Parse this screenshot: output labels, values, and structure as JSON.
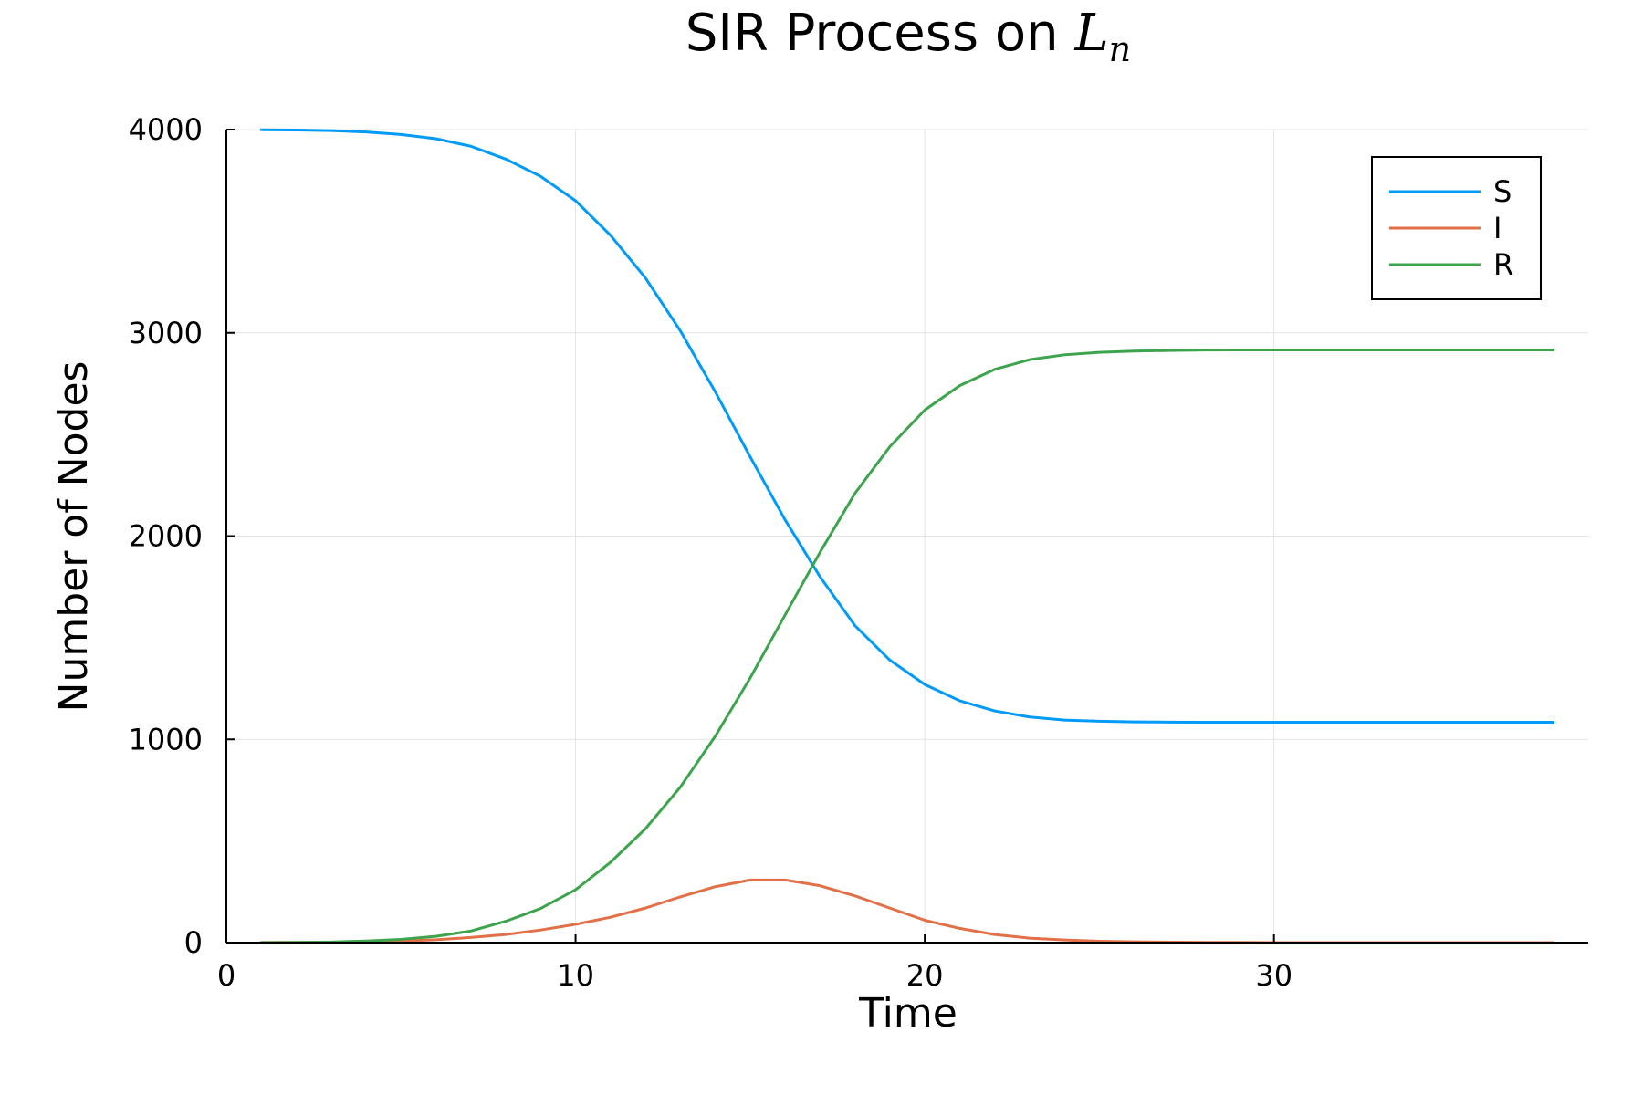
{
  "chart_data": {
    "type": "line",
    "title": "SIR Process on ",
    "title_math_main": "L",
    "title_math_sub": "n",
    "xlabel": "Time",
    "ylabel": "Number of Nodes",
    "xlim": [
      0,
      39
    ],
    "ylim": [
      0,
      4000
    ],
    "xticks": [
      0,
      10,
      20,
      30
    ],
    "xtick_labels": [
      "0",
      "10",
      "20",
      "30"
    ],
    "yticks": [
      0,
      1000,
      2000,
      3000,
      4000
    ],
    "ytick_labels": [
      "0",
      "1000",
      "2000",
      "3000",
      "4000"
    ],
    "grid": true,
    "legend_position": "top-right",
    "x": [
      1,
      2,
      3,
      4,
      5,
      6,
      7,
      8,
      9,
      10,
      11,
      12,
      13,
      14,
      15,
      16,
      17,
      18,
      19,
      20,
      21,
      22,
      23,
      24,
      25,
      26,
      27,
      28,
      29,
      30,
      31,
      32,
      33,
      34,
      35,
      36,
      37,
      38
    ],
    "series": [
      {
        "name": "S",
        "color": "#009af9",
        "values": [
          3999,
          3998,
          3995,
          3988,
          3976,
          3955,
          3918,
          3855,
          3770,
          3650,
          3480,
          3270,
          3010,
          2710,
          2390,
          2080,
          1800,
          1560,
          1390,
          1270,
          1190,
          1140,
          1110,
          1095,
          1089,
          1086,
          1085,
          1084,
          1084,
          1084,
          1084,
          1084,
          1084,
          1084,
          1084,
          1084,
          1084,
          1084
        ]
      },
      {
        "name": "I",
        "color": "#e26f46",
        "values": [
          1,
          1,
          2,
          4,
          8,
          14,
          25,
          40,
          62,
          90,
          125,
          170,
          225,
          275,
          308,
          308,
          280,
          230,
          170,
          110,
          70,
          40,
          22,
          13,
          7,
          4,
          2,
          1,
          1,
          0,
          0,
          0,
          0,
          0,
          0,
          0,
          0,
          0
        ]
      },
      {
        "name": "R",
        "color": "#3da44d",
        "values": [
          0,
          1,
          3,
          8,
          16,
          31,
          57,
          105,
          168,
          260,
          395,
          560,
          765,
          1015,
          1302,
          1612,
          1920,
          2210,
          2440,
          2620,
          2740,
          2820,
          2868,
          2892,
          2904,
          2910,
          2913,
          2915,
          2916,
          2916,
          2916,
          2916,
          2916,
          2916,
          2916,
          2916,
          2916,
          2916
        ]
      }
    ]
  }
}
